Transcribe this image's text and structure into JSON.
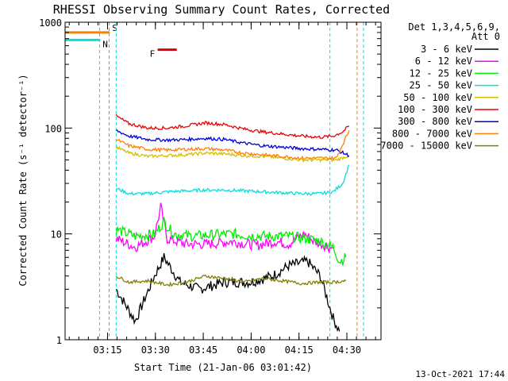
{
  "chart_data": {
    "type": "line",
    "title": "RHESSI Observing Summary Count Rates, Corrected",
    "xlabel": "Start Time (21-Jan-06 03:01:42)",
    "ylabel": "Corrected Count Rate (s⁻¹ detector⁻¹)",
    "y_scale": "log",
    "ylim": [
      1,
      1000
    ],
    "xlim_minutes": [
      0,
      99
    ],
    "x_tick_labels": [
      "03:15",
      "03:30",
      "03:45",
      "04:00",
      "04:15",
      "04:30"
    ],
    "x_tick_minutes": [
      13.3,
      28.3,
      43.3,
      58.3,
      73.3,
      88.3
    ],
    "y_tick_labels": [
      "1",
      "10",
      "100",
      "1000"
    ],
    "y_tick_values": [
      1,
      10,
      100,
      1000
    ],
    "legend_title_lines": [
      "Det 1,3,4,5,6,9,",
      "Att 0"
    ],
    "legend_position": "outside-right",
    "timestamp": "13-Oct-2021 17:44",
    "flags": [
      {
        "label": "S",
        "color": "#ff8000",
        "value": 800,
        "x0": 0,
        "x1": 14
      },
      {
        "label": "N",
        "color": "#00e0e0",
        "value": 680,
        "x0": 0,
        "x1": 11
      },
      {
        "label": "F",
        "color": "#dd0000",
        "value": 550,
        "x0": 29,
        "x1": 35
      }
    ],
    "markers": [
      {
        "color": "#00e0e0",
        "minutes": [
          10.8,
          16,
          83,
          93.5
        ]
      },
      {
        "color": "#ff8000",
        "minutes": [
          13.8,
          91.5
        ]
      }
    ],
    "series": [
      {
        "name": "3 - 6 keV",
        "color": "#000000",
        "points": [
          [
            16,
            3
          ],
          [
            22,
            1.5
          ],
          [
            28,
            4
          ],
          [
            31,
            6
          ],
          [
            36,
            3.5
          ],
          [
            42,
            3
          ],
          [
            50,
            3.5
          ],
          [
            58,
            3.5
          ],
          [
            65,
            4
          ],
          [
            70,
            5
          ],
          [
            76,
            5.5
          ],
          [
            80,
            4
          ],
          [
            84,
            1.6
          ],
          [
            86,
            1.2
          ]
        ]
      },
      {
        "name": "6 - 12 keV",
        "color": "#ff00ff",
        "points": [
          [
            16,
            9
          ],
          [
            22,
            7.5
          ],
          [
            28,
            9.5
          ],
          [
            30,
            18
          ],
          [
            32,
            9
          ],
          [
            38,
            8
          ],
          [
            45,
            8
          ],
          [
            52,
            8.5
          ],
          [
            60,
            7.8
          ],
          [
            66,
            8.5
          ],
          [
            70,
            8
          ],
          [
            75,
            10
          ],
          [
            78,
            8.5
          ],
          [
            84,
            7.3
          ]
        ]
      },
      {
        "name": "12 - 25 keV",
        "color": "#00ee00",
        "points": [
          [
            16,
            11
          ],
          [
            22,
            9.5
          ],
          [
            28,
            10
          ],
          [
            31,
            13
          ],
          [
            34,
            10
          ],
          [
            40,
            9.5
          ],
          [
            46,
            9.8
          ],
          [
            52,
            10
          ],
          [
            58,
            9.6
          ],
          [
            64,
            9.5
          ],
          [
            70,
            9.5
          ],
          [
            76,
            9
          ],
          [
            80,
            8.5
          ],
          [
            84,
            7.5
          ],
          [
            86,
            5.5
          ],
          [
            88,
            6
          ]
        ]
      },
      {
        "name": "25 - 50 keV",
        "color": "#00e0e0",
        "points": [
          [
            16,
            27
          ],
          [
            20,
            24
          ],
          [
            26,
            24
          ],
          [
            32,
            25
          ],
          [
            38,
            25.5
          ],
          [
            44,
            26
          ],
          [
            50,
            26
          ],
          [
            56,
            25.5
          ],
          [
            62,
            25
          ],
          [
            68,
            24.5
          ],
          [
            74,
            24
          ],
          [
            80,
            24
          ],
          [
            84,
            25
          ],
          [
            87,
            30
          ],
          [
            89,
            45
          ]
        ]
      },
      {
        "name": "50 - 100 keV",
        "color": "#d4c000",
        "points": [
          [
            16,
            66
          ],
          [
            20,
            58
          ],
          [
            26,
            54
          ],
          [
            32,
            55
          ],
          [
            38,
            56
          ],
          [
            44,
            58
          ],
          [
            50,
            57
          ],
          [
            56,
            55
          ],
          [
            62,
            54
          ],
          [
            68,
            52
          ],
          [
            74,
            50
          ],
          [
            80,
            50
          ],
          [
            85,
            50
          ],
          [
            89,
            55
          ]
        ]
      },
      {
        "name": "100 - 300 keV",
        "color": "#ee0000",
        "points": [
          [
            16,
            130
          ],
          [
            20,
            110
          ],
          [
            26,
            100
          ],
          [
            32,
            100
          ],
          [
            38,
            105
          ],
          [
            44,
            112
          ],
          [
            50,
            108
          ],
          [
            56,
            98
          ],
          [
            62,
            92
          ],
          [
            68,
            88
          ],
          [
            74,
            84
          ],
          [
            80,
            82
          ],
          [
            84,
            84
          ],
          [
            87,
            92
          ],
          [
            89,
            105
          ]
        ]
      },
      {
        "name": "300 - 800 keV",
        "color": "#0000dd",
        "points": [
          [
            16,
            95
          ],
          [
            20,
            84
          ],
          [
            26,
            78
          ],
          [
            32,
            77
          ],
          [
            38,
            78
          ],
          [
            44,
            80
          ],
          [
            50,
            78
          ],
          [
            56,
            72
          ],
          [
            62,
            68
          ],
          [
            68,
            66
          ],
          [
            74,
            64
          ],
          [
            80,
            63
          ],
          [
            85,
            62
          ],
          [
            89,
            55
          ]
        ]
      },
      {
        "name": "800 - 7000 keV",
        "color": "#ff8000",
        "points": [
          [
            16,
            78
          ],
          [
            20,
            68
          ],
          [
            26,
            63
          ],
          [
            32,
            62
          ],
          [
            38,
            63
          ],
          [
            44,
            64
          ],
          [
            50,
            62
          ],
          [
            56,
            58
          ],
          [
            62,
            56
          ],
          [
            68,
            54
          ],
          [
            74,
            52
          ],
          [
            80,
            52
          ],
          [
            85,
            52
          ],
          [
            89,
            95
          ]
        ]
      },
      {
        "name": "7000 - 15000 keV",
        "color": "#808000",
        "points": [
          [
            16,
            4
          ],
          [
            20,
            3.5
          ],
          [
            26,
            3.6
          ],
          [
            32,
            3.3
          ],
          [
            38,
            3.5
          ],
          [
            44,
            4
          ],
          [
            50,
            3.8
          ],
          [
            56,
            3.5
          ],
          [
            62,
            3.8
          ],
          [
            68,
            3.6
          ],
          [
            74,
            3.4
          ],
          [
            80,
            3.5
          ],
          [
            84,
            3.5
          ],
          [
            88,
            3.6
          ]
        ]
      }
    ]
  }
}
